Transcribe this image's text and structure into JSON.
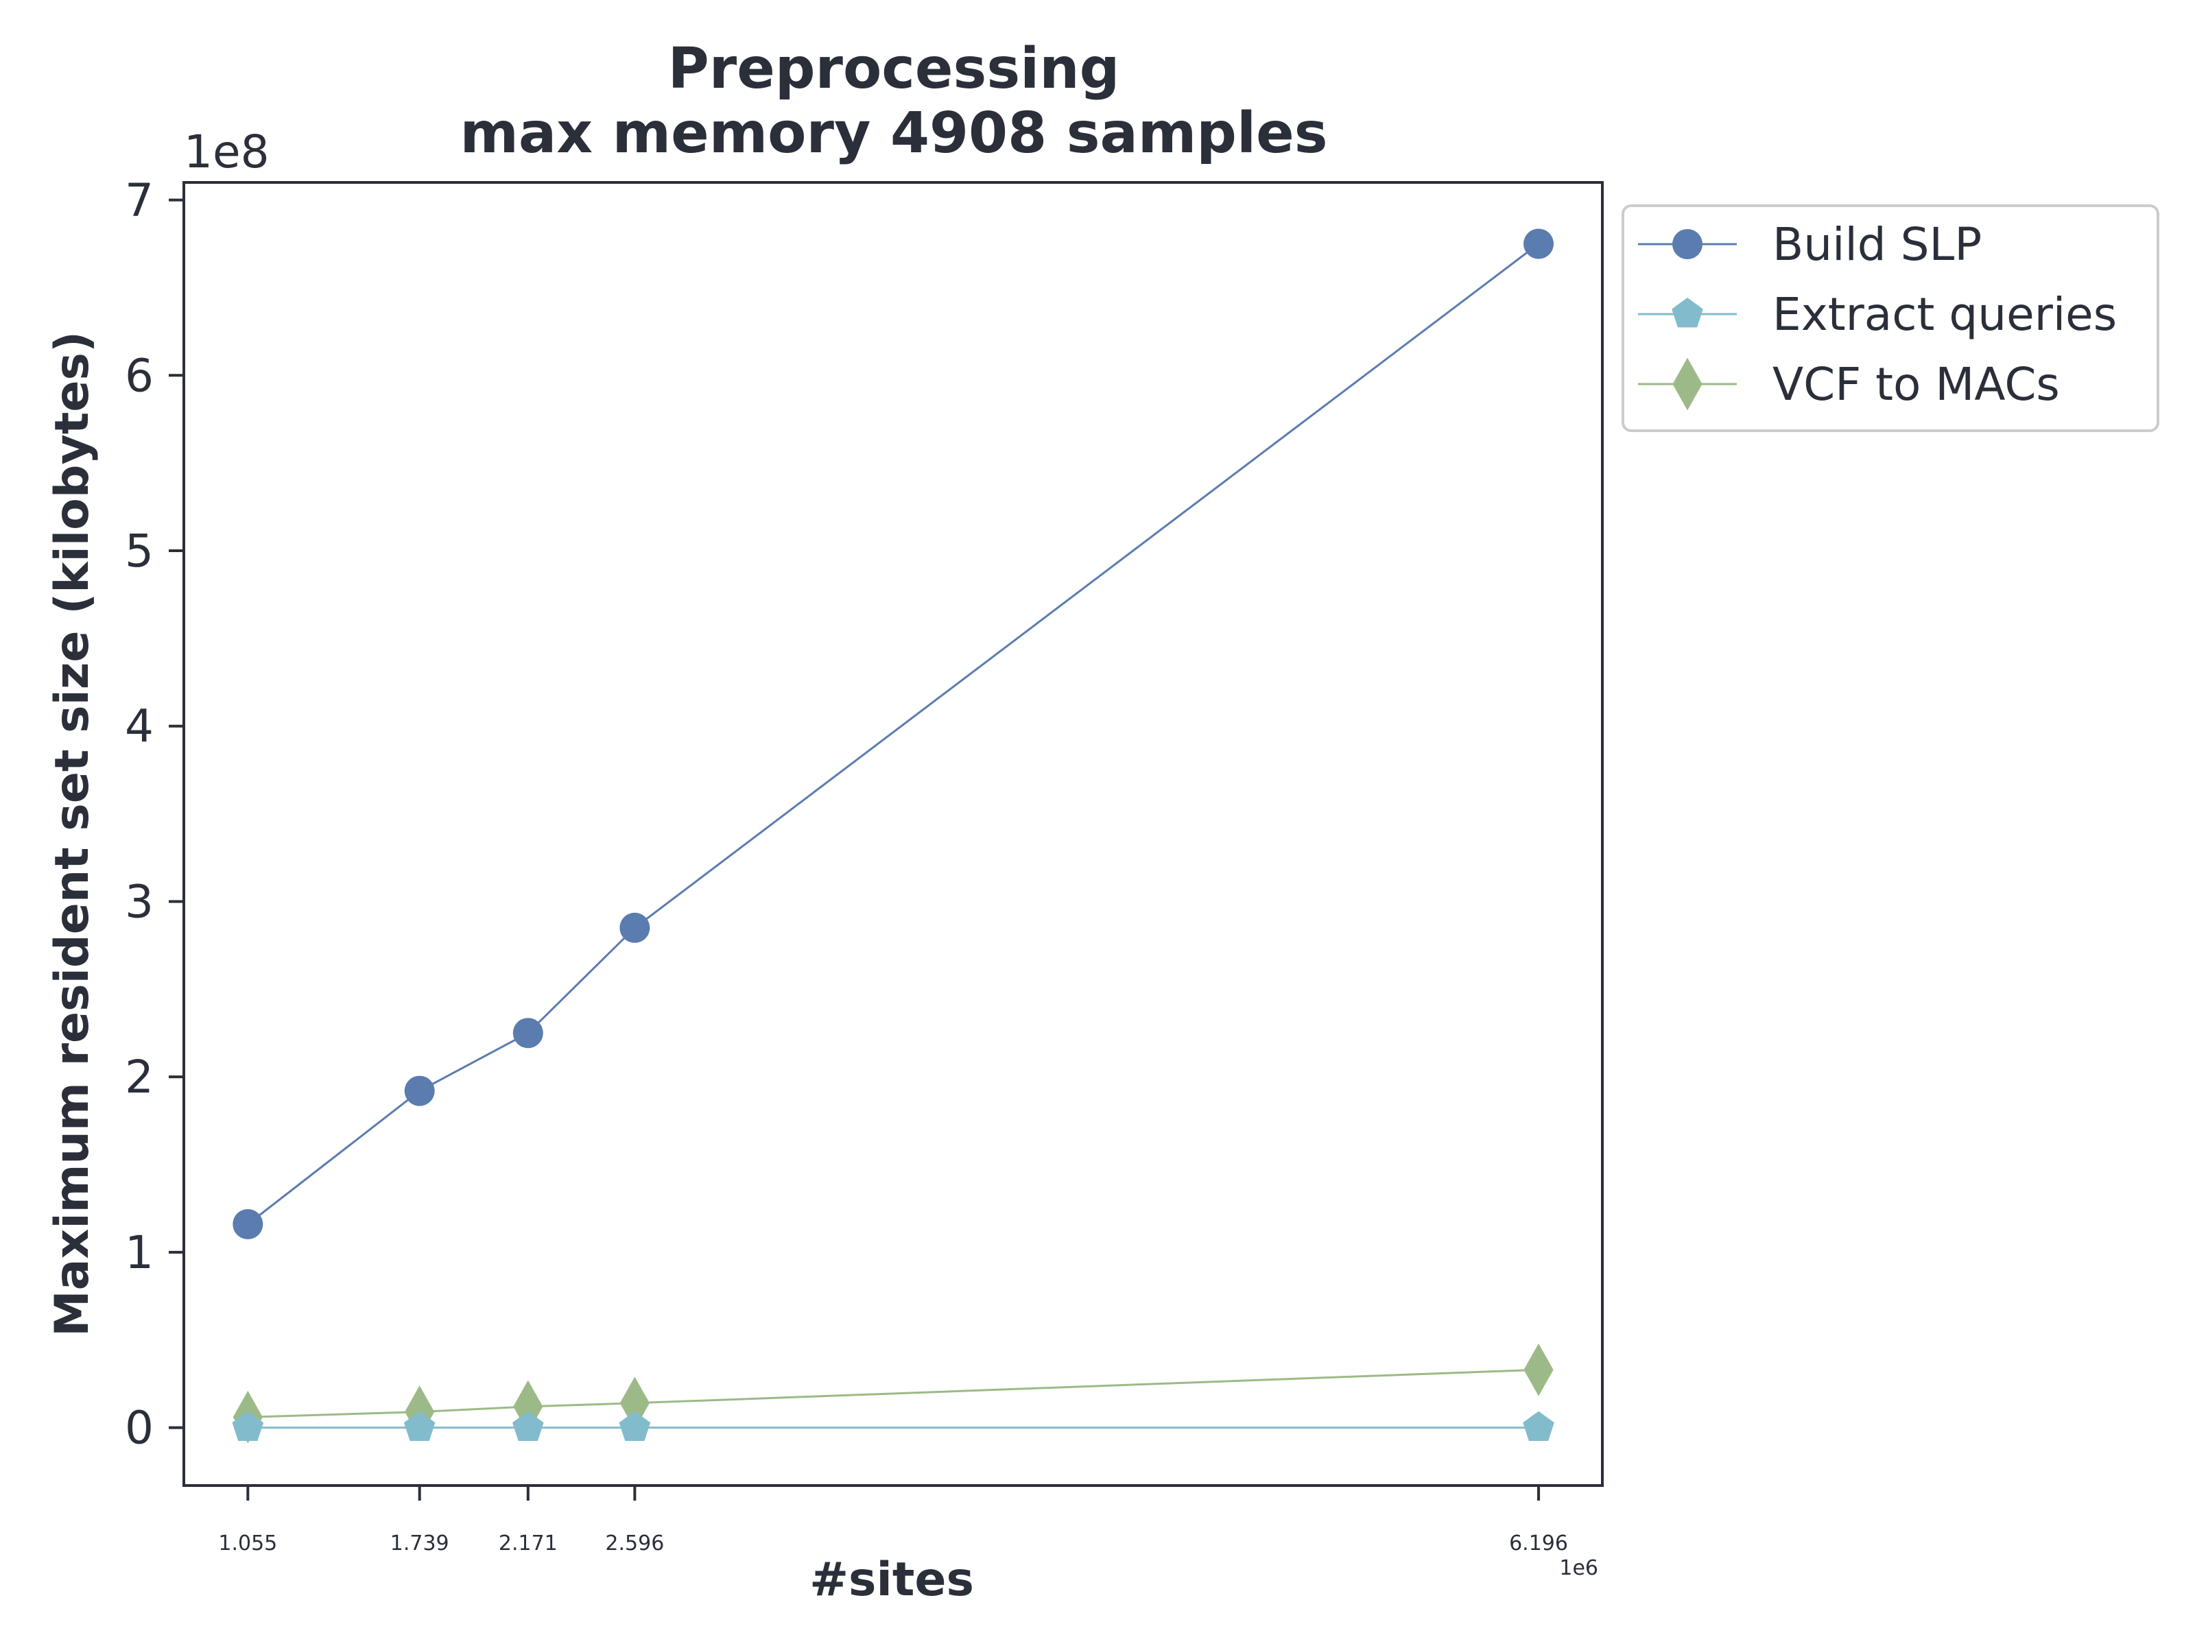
{
  "chart_data": {
    "type": "line",
    "title": [
      "Preprocessing",
      "max memory 4908 samples"
    ],
    "xlabel": "#sites",
    "ylabel": "Maximum resident set size (kilobytes)",
    "x_multiplier": "1e6",
    "y_multiplier": "1e8",
    "x": [
      1.055,
      1.739,
      2.171,
      2.596,
      6.196
    ],
    "x_tick_labels": [
      "1.055",
      "1.739",
      "2.171",
      "2.596",
      "6.196"
    ],
    "y_ticks": [
      0,
      1,
      2,
      3,
      4,
      5,
      6,
      7
    ],
    "y_tick_labels": [
      "0",
      "1",
      "2",
      "3",
      "4",
      "5",
      "6",
      "7"
    ],
    "xlim": [
      0.8,
      6.45
    ],
    "ylim": [
      -0.33,
      7.1
    ],
    "grid": false,
    "legend_position": "outside-right-top",
    "series": [
      {
        "name": "Build SLP",
        "marker": "circle",
        "color": "#5b7caf",
        "values": [
          1.16,
          1.92,
          2.25,
          2.85,
          6.75
        ]
      },
      {
        "name": "Extract queries",
        "marker": "pentagon",
        "color": "#82bccc",
        "values": [
          0.0,
          0.0,
          0.0,
          0.0,
          0.0
        ]
      },
      {
        "name": "VCF to MACs",
        "marker": "diamond",
        "color": "#9cba87",
        "values": [
          0.06,
          0.09,
          0.12,
          0.14,
          0.33
        ]
      }
    ]
  }
}
